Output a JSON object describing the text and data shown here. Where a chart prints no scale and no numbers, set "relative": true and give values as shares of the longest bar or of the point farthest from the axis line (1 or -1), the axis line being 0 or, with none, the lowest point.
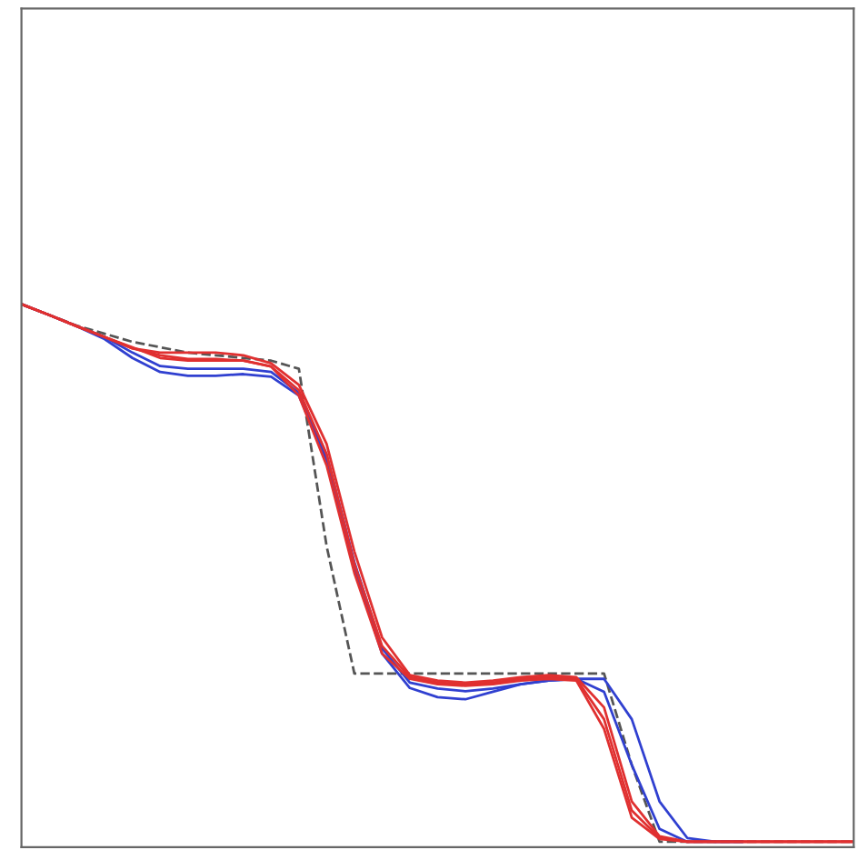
{
  "chart_data": {
    "type": "line",
    "relative": true,
    "legend": false,
    "categories": [
      null,
      null,
      null,
      null,
      null,
      null,
      null,
      null,
      null,
      null,
      null,
      null,
      null,
      null,
      null,
      null,
      null,
      null,
      null,
      null,
      null,
      null,
      null,
      null,
      null,
      null,
      null,
      null,
      null,
      null,
      null
    ],
    "series": [
      {
        "color": "#555555",
        "line_style": "dashed",
        "values": [
          1,
          0.98,
          0.96,
          0.945,
          0.93,
          0.92,
          0.91,
          0.905,
          0.9,
          0.895,
          0.88,
          0.55,
          0.313,
          0.313,
          0.313,
          0.313,
          0.313,
          0.313,
          0.313,
          0.313,
          0.313,
          0.313,
          0.143,
          0,
          0,
          0,
          0,
          0,
          0,
          0,
          0
        ]
      },
      {
        "color": "#3040d0",
        "line_style": "solid",
        "values": [
          1,
          0.98,
          0.959,
          0.939,
          0.91,
          0.885,
          0.88,
          0.88,
          0.88,
          0.874,
          0.835,
          0.72,
          0.52,
          0.36,
          0.296,
          0.285,
          0.28,
          0.285,
          0.293,
          0.3,
          0.303,
          0.279,
          0.143,
          0.024,
          0,
          0,
          0,
          null,
          null,
          null,
          null
        ]
      },
      {
        "color": "#3040d0",
        "line_style": "solid",
        "values": [
          1,
          0.98,
          0.959,
          0.935,
          0.9,
          0.874,
          0.867,
          0.867,
          0.87,
          0.865,
          0.83,
          0.71,
          0.51,
          0.35,
          0.286,
          0.269,
          0.265,
          0.279,
          0.293,
          0.3,
          0.303,
          0.303,
          0.228,
          0.075,
          0.007,
          0,
          0,
          null,
          null,
          null,
          null
        ]
      },
      {
        "color": "#e03030",
        "line_style": "solid",
        "values": [
          1,
          0.98,
          0.959,
          0.939,
          0.918,
          0.905,
          0.898,
          0.898,
          0.895,
          0.884,
          0.84,
          0.721,
          0.517,
          0.364,
          0.306,
          0.296,
          0.293,
          0.296,
          0.303,
          0.306,
          0.303,
          0.228,
          0.058,
          0.007,
          0,
          0,
          0,
          0,
          0,
          0,
          0
        ]
      },
      {
        "color": "#e03030",
        "line_style": "solid",
        "values": [
          1,
          0.98,
          0.959,
          0.939,
          0.918,
          0.91,
          0.91,
          0.91,
          0.905,
          0.89,
          0.85,
          0.74,
          0.54,
          0.38,
          0.31,
          0.3,
          0.296,
          0.3,
          0.306,
          0.31,
          0.306,
          0.25,
          0.075,
          0.01,
          0,
          0,
          0,
          0,
          0,
          0,
          0
        ]
      },
      {
        "color": "#e03030",
        "line_style": "solid",
        "values": [
          1,
          0.98,
          0.959,
          0.939,
          0.92,
          0.9,
          0.895,
          0.895,
          0.895,
          0.884,
          0.83,
          0.7,
          0.5,
          0.35,
          0.303,
          0.293,
          0.29,
          0.293,
          0.3,
          0.303,
          0.3,
          0.21,
          0.045,
          0.005,
          0,
          0,
          0,
          0,
          0,
          0,
          0
        ]
      }
    ]
  }
}
